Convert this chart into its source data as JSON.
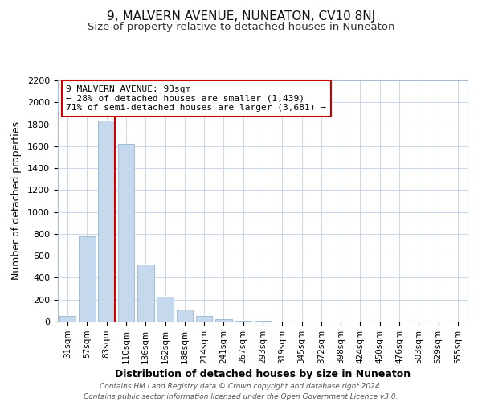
{
  "title": "9, MALVERN AVENUE, NUNEATON, CV10 8NJ",
  "subtitle": "Size of property relative to detached houses in Nuneaton",
  "xlabel": "Distribution of detached houses by size in Nuneaton",
  "ylabel": "Number of detached properties",
  "bar_labels": [
    "31sqm",
    "57sqm",
    "83sqm",
    "110sqm",
    "136sqm",
    "162sqm",
    "188sqm",
    "214sqm",
    "241sqm",
    "267sqm",
    "293sqm",
    "319sqm",
    "345sqm",
    "372sqm",
    "398sqm",
    "424sqm",
    "450sqm",
    "476sqm",
    "503sqm",
    "529sqm",
    "555sqm"
  ],
  "bar_values": [
    50,
    780,
    1830,
    1620,
    520,
    230,
    110,
    55,
    25,
    10,
    5,
    0,
    0,
    0,
    0,
    0,
    0,
    0,
    0,
    0,
    0
  ],
  "bar_color": "#c6d9ec",
  "bar_edge_color": "#9bbdd4",
  "vline_color": "#cc0000",
  "ylim": [
    0,
    2200
  ],
  "yticks": [
    0,
    200,
    400,
    600,
    800,
    1000,
    1200,
    1400,
    1600,
    1800,
    2000,
    2200
  ],
  "annotation_title": "9 MALVERN AVENUE: 93sqm",
  "annotation_line1": "← 28% of detached houses are smaller (1,439)",
  "annotation_line2": "71% of semi-detached houses are larger (3,681) →",
  "annotation_box_color": "#ffffff",
  "annotation_box_edge": "#cc0000",
  "footer_line1": "Contains HM Land Registry data © Crown copyright and database right 2024.",
  "footer_line2": "Contains public sector information licensed under the Open Government Licence v3.0.",
  "background_color": "#ffffff",
  "grid_color": "#ccd8e8",
  "title_fontsize": 11,
  "subtitle_fontsize": 9.5
}
